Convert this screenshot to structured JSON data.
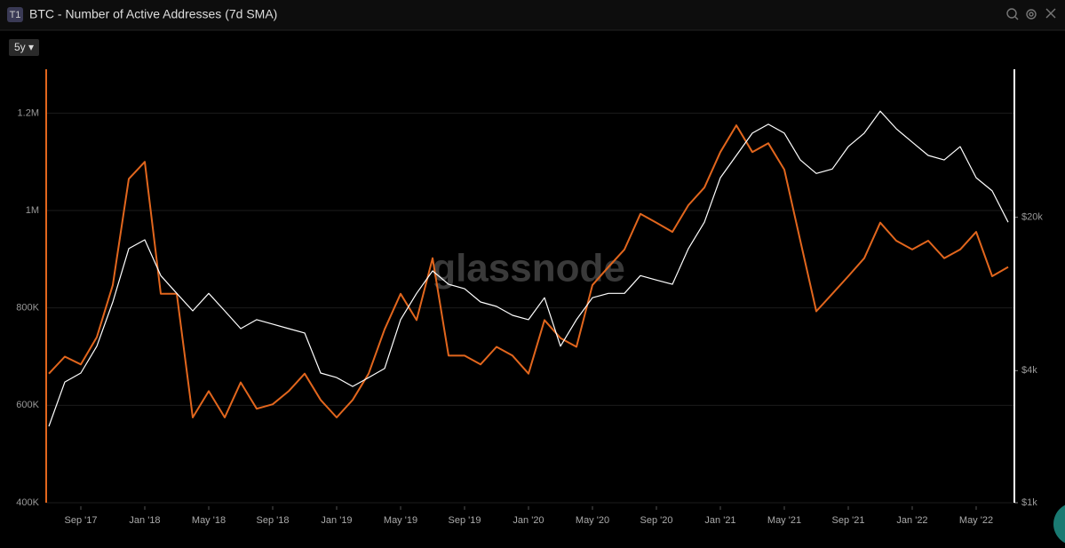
{
  "header": {
    "badge": "T1",
    "title": "BTC - Number of Active Addresses (7d SMA)",
    "range_button": "5y ▾"
  },
  "chart_data": {
    "type": "line",
    "watermark": "glassnode",
    "x": [
      "2017-07",
      "2017-08",
      "2017-09",
      "2017-10",
      "2017-11",
      "2017-12",
      "2018-01",
      "2018-02",
      "2018-03",
      "2018-04",
      "2018-05",
      "2018-06",
      "2018-07",
      "2018-08",
      "2018-09",
      "2018-10",
      "2018-11",
      "2018-12",
      "2019-01",
      "2019-02",
      "2019-03",
      "2019-04",
      "2019-05",
      "2019-06",
      "2019-07",
      "2019-08",
      "2019-09",
      "2019-10",
      "2019-11",
      "2019-12",
      "2020-01",
      "2020-02",
      "2020-03",
      "2020-04",
      "2020-05",
      "2020-06",
      "2020-07",
      "2020-08",
      "2020-09",
      "2020-10",
      "2020-11",
      "2020-12",
      "2021-01",
      "2021-02",
      "2021-03",
      "2021-04",
      "2021-05",
      "2021-06",
      "2021-07",
      "2021-08",
      "2021-09",
      "2021-10",
      "2021-11",
      "2021-12",
      "2022-01",
      "2022-02",
      "2022-03",
      "2022-04",
      "2022-05",
      "2022-06",
      "2022-07"
    ],
    "xlim": [
      "2017-07",
      "2022-07"
    ],
    "xticks": [
      {
        "value": "2017-09",
        "label": "Sep '17"
      },
      {
        "value": "2018-01",
        "label": "Jan '18"
      },
      {
        "value": "2018-05",
        "label": "May '18"
      },
      {
        "value": "2018-09",
        "label": "Sep '18"
      },
      {
        "value": "2019-01",
        "label": "Jan '19"
      },
      {
        "value": "2019-05",
        "label": "May '19"
      },
      {
        "value": "2019-09",
        "label": "Sep '19"
      },
      {
        "value": "2020-01",
        "label": "Jan '20"
      },
      {
        "value": "2020-05",
        "label": "May '20"
      },
      {
        "value": "2020-09",
        "label": "Sep '20"
      },
      {
        "value": "2021-01",
        "label": "Jan '21"
      },
      {
        "value": "2021-05",
        "label": "May '21"
      },
      {
        "value": "2021-09",
        "label": "Sep '21"
      },
      {
        "value": "2022-01",
        "label": "Jan '22"
      },
      {
        "value": "2022-05",
        "label": "May '22"
      }
    ],
    "ylim": [
      400000,
      1290000
    ],
    "yticks": [
      {
        "value": 400000,
        "label": "400K"
      },
      {
        "value": 600000,
        "label": "600K"
      },
      {
        "value": 800000,
        "label": "800K"
      },
      {
        "value": 1000000,
        "label": "1M"
      },
      {
        "value": 1200000,
        "label": "1.2M"
      }
    ],
    "y2lim": [
      1000,
      94600
    ],
    "y2_log": true,
    "y2ticks": [
      {
        "value": 1000,
        "label": "$1k"
      },
      {
        "value": 4000,
        "label": "$4k"
      },
      {
        "value": 20000,
        "label": "$20k"
      }
    ],
    "grid": true,
    "y_axis_color": "#e2661d",
    "y2_axis_color": "#ffffff",
    "series": [
      {
        "color": "#e2661d",
        "values": [
          665000,
          700000,
          684000,
          740000,
          847000,
          1065000,
          1100000,
          829000,
          829000,
          575000,
          629000,
          575000,
          647000,
          593000,
          602000,
          629000,
          665000,
          611000,
          575000,
          611000,
          665000,
          756000,
          829000,
          775000,
          902000,
          702000,
          702000,
          684000,
          720000,
          702000,
          665000,
          775000,
          738000,
          720000,
          847000,
          884000,
          920000,
          993000,
          975000,
          956000,
          1011000,
          1047000,
          1120000,
          1175000,
          1120000,
          1138000,
          1084000,
          938000,
          793000,
          829000,
          865000,
          902000,
          975000,
          938000,
          920000,
          938000,
          902000,
          920000,
          956000,
          865000,
          884000
        ]
      },
      {
        "color": "#ffffff",
        "axis": "y2",
        "values": [
          2230,
          3550,
          3900,
          5170,
          8220,
          14400,
          15800,
          10850,
          9000,
          7490,
          9000,
          7490,
          6220,
          6830,
          6520,
          6220,
          5940,
          3900,
          3720,
          3390,
          3720,
          4090,
          6830,
          9000,
          11400,
          9900,
          9450,
          8220,
          7850,
          7150,
          6830,
          8600,
          5170,
          6830,
          8600,
          9000,
          9000,
          10850,
          10350,
          9900,
          14400,
          19000,
          30300,
          38300,
          48400,
          53100,
          48400,
          36500,
          31700,
          33200,
          42000,
          48400,
          61000,
          50700,
          44000,
          38300,
          36500,
          42000,
          30300,
          26400,
          19000
        ]
      }
    ]
  }
}
